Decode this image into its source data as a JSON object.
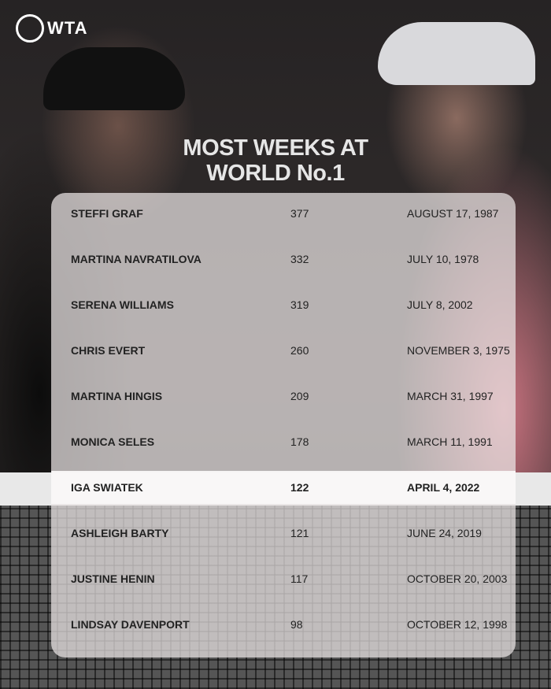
{
  "brand": {
    "logo_text": "WTA"
  },
  "title_lines": [
    "MOST WEEKS AT",
    "WORLD No.1"
  ],
  "highlight_color": "#ffffff",
  "rows": [
    {
      "name": "STEFFI GRAF",
      "weeks": "377",
      "date": "AUGUST 17, 1987"
    },
    {
      "name": "MARTINA NAVRATILOVA",
      "weeks": "332",
      "date": "JULY 10, 1978"
    },
    {
      "name": "SERENA WILLIAMS",
      "weeks": "319",
      "date": "JULY 8, 2002"
    },
    {
      "name": "CHRIS EVERT",
      "weeks": "260",
      "date": "NOVEMBER 3, 1975"
    },
    {
      "name": "MARTINA HINGIS",
      "weeks": "209",
      "date": "MARCH 31, 1997"
    },
    {
      "name": "MONICA SELES",
      "weeks": "178",
      "date": "MARCH 11, 1991"
    },
    {
      "name": "IGA SWIATEK",
      "weeks": "122",
      "date": "APRIL 4, 2022",
      "highlighted": true
    },
    {
      "name": "ASHLEIGH BARTY",
      "weeks": "121",
      "date": "JUNE 24, 2019"
    },
    {
      "name": "JUSTINE HENIN",
      "weeks": "117",
      "date": "OCTOBER 20, 2003"
    },
    {
      "name": "LINDSAY DAVENPORT",
      "weeks": "98",
      "date": "OCTOBER 12, 1998"
    }
  ]
}
